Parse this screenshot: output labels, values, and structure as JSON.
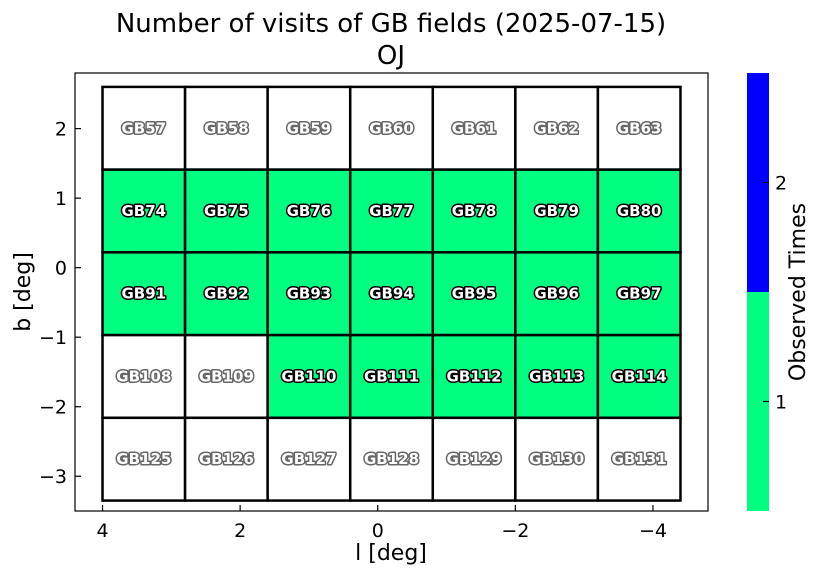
{
  "title_line1": "Number of visits of GB fields (2025-07-15)",
  "title_line2": "OJ",
  "xlabel": "l [deg]",
  "ylabel": "b [deg]",
  "colorbar_label": "Observed Times",
  "chart_data": {
    "type": "heatmap",
    "xlim": [
      4.4,
      -4.8
    ],
    "ylim": [
      -3.5,
      2.8
    ],
    "x_ticks": [
      4,
      2,
      0,
      -2,
      -4
    ],
    "x_tick_labels": [
      "4",
      "2",
      "0",
      "−2",
      "−4"
    ],
    "y_ticks": [
      2,
      1,
      0,
      -1,
      -2,
      -3
    ],
    "y_tick_labels": [
      "2",
      "1",
      "0",
      "−1",
      "−2",
      "−3"
    ],
    "grid": false,
    "grid_extent": {
      "l_left": 4.0,
      "l_right": -4.4,
      "b_top": 2.6,
      "b_bottom": -3.35
    },
    "colorbar": {
      "levels": [
        {
          "value": 1,
          "color": "#00ff80"
        },
        {
          "value": 2,
          "color": "#0000ff"
        }
      ],
      "ticks": [
        "1",
        "2"
      ]
    },
    "unobserved_color": "#ffffff",
    "rows": [
      {
        "fields": [
          "GB57",
          "GB58",
          "GB59",
          "GB60",
          "GB61",
          "GB62",
          "GB63"
        ],
        "visits": [
          0,
          0,
          0,
          0,
          0,
          0,
          0
        ]
      },
      {
        "fields": [
          "GB74",
          "GB75",
          "GB76",
          "GB77",
          "GB78",
          "GB79",
          "GB80"
        ],
        "visits": [
          1,
          1,
          1,
          1,
          1,
          1,
          1
        ]
      },
      {
        "fields": [
          "GB91",
          "GB92",
          "GB93",
          "GB94",
          "GB95",
          "GB96",
          "GB97"
        ],
        "visits": [
          1,
          1,
          1,
          1,
          1,
          1,
          1
        ]
      },
      {
        "fields": [
          "GB108",
          "GB109",
          "GB110",
          "GB111",
          "GB112",
          "GB113",
          "GB114"
        ],
        "visits": [
          0,
          0,
          1,
          1,
          1,
          1,
          1
        ]
      },
      {
        "fields": [
          "GB125",
          "GB126",
          "GB127",
          "GB128",
          "GB129",
          "GB130",
          "GB131"
        ],
        "visits": [
          0,
          0,
          0,
          0,
          0,
          0,
          0
        ]
      }
    ]
  }
}
